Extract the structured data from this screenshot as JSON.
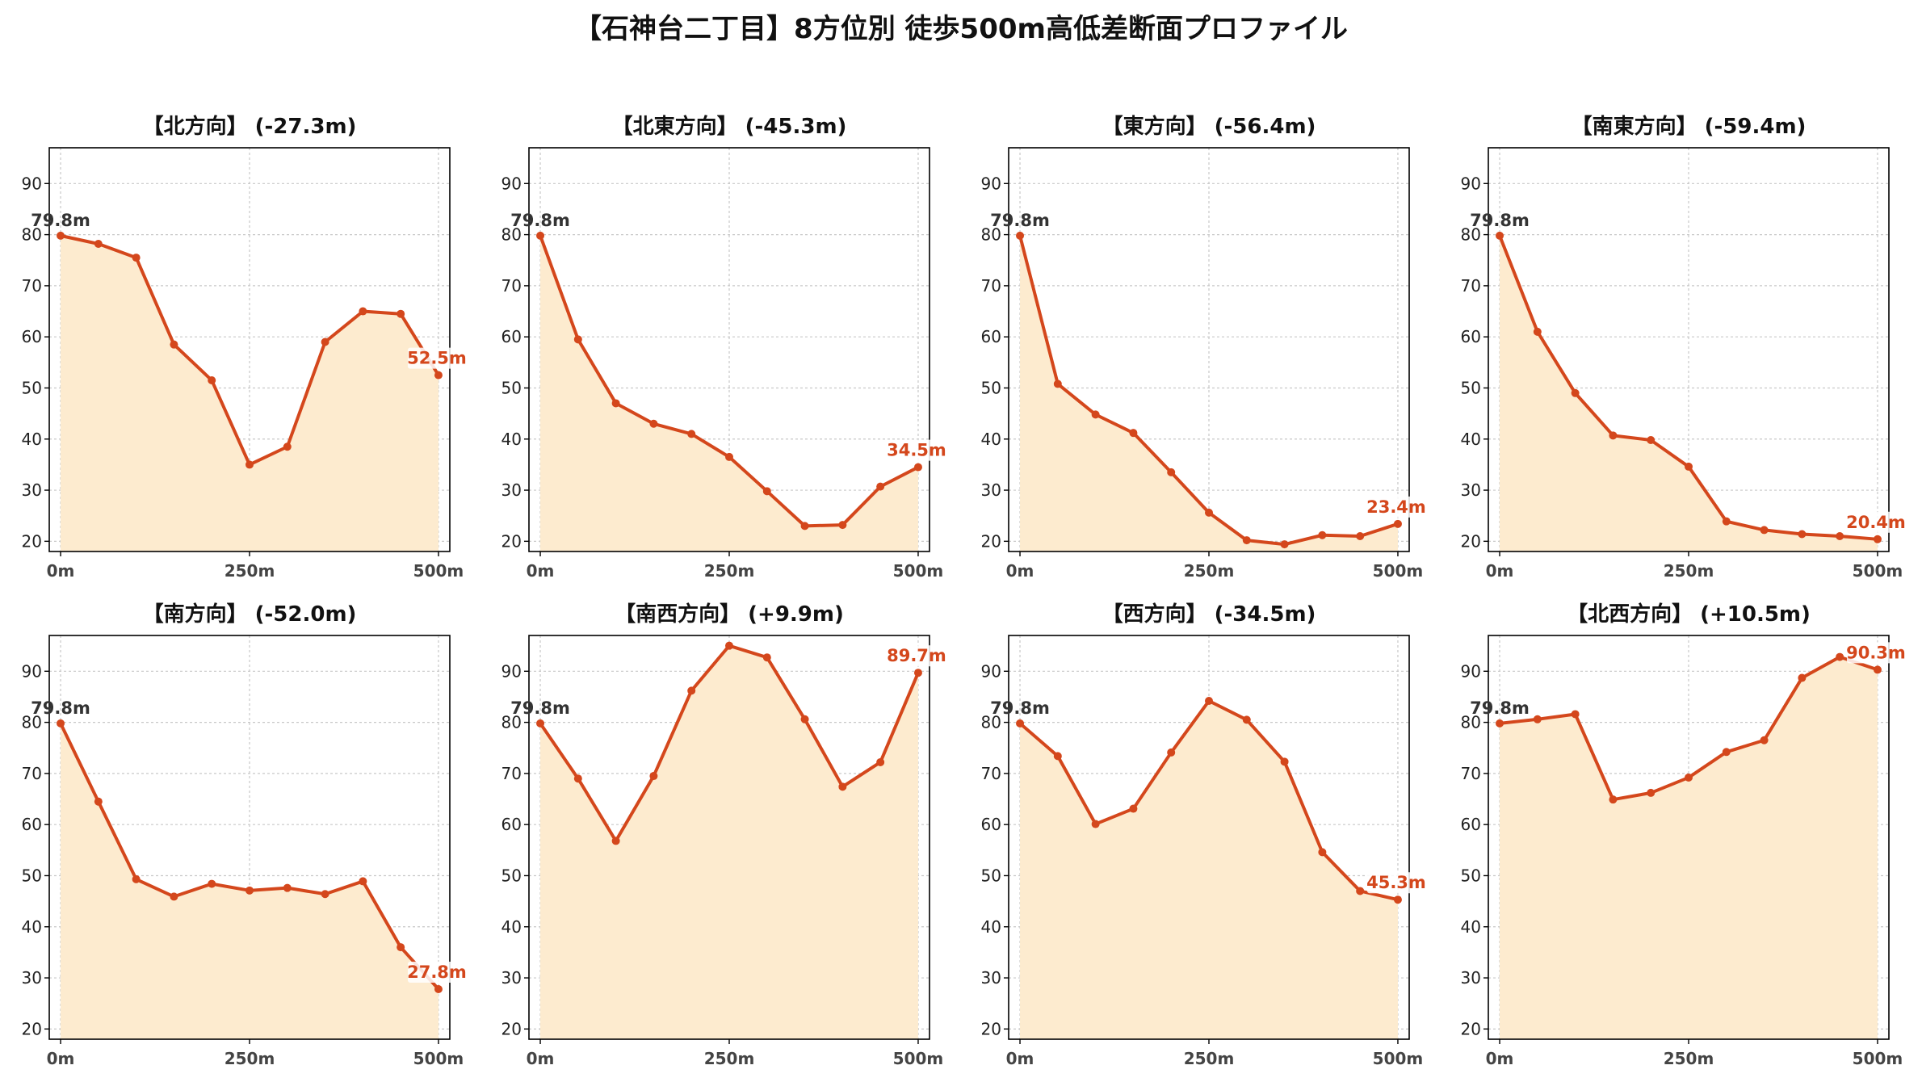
{
  "title": "【石神台二丁目】8方位別 徒歩500m高低差断面プロファイル",
  "colors": {
    "line": "#d4471c",
    "fill": "#fdebcf",
    "grid": "#c8c8c8",
    "end_label": "#d4471c",
    "start_label": "#333333"
  },
  "chart_data": [
    {
      "type": "area",
      "title": "【北方向】 (-27.3m)",
      "x": [
        0,
        50,
        100,
        150,
        200,
        250,
        300,
        350,
        400,
        450,
        500
      ],
      "values": [
        79.8,
        78.2,
        75.5,
        58.5,
        51.5,
        35.0,
        38.5,
        59.0,
        65.0,
        64.5,
        52.5
      ],
      "xticks": [
        "0m",
        "250m",
        "500m"
      ],
      "xtick_values": [
        0,
        250,
        500
      ],
      "yticks": [
        20,
        30,
        40,
        50,
        60,
        70,
        80,
        90
      ],
      "ylim": [
        18,
        97
      ],
      "start_label": "79.8m",
      "end_label": "52.5m",
      "grid": true
    },
    {
      "type": "area",
      "title": "【北東方向】 (-45.3m)",
      "x": [
        0,
        50,
        100,
        150,
        200,
        250,
        300,
        350,
        400,
        450,
        500
      ],
      "values": [
        79.8,
        59.5,
        47.0,
        43.0,
        41.0,
        36.5,
        29.8,
        23.0,
        23.2,
        30.7,
        34.5
      ],
      "xticks": [
        "0m",
        "250m",
        "500m"
      ],
      "xtick_values": [
        0,
        250,
        500
      ],
      "yticks": [
        20,
        30,
        40,
        50,
        60,
        70,
        80,
        90
      ],
      "ylim": [
        18,
        97
      ],
      "start_label": "79.8m",
      "end_label": "34.5m",
      "grid": true
    },
    {
      "type": "area",
      "title": "【東方向】 (-56.4m)",
      "x": [
        0,
        50,
        100,
        150,
        200,
        250,
        300,
        350,
        400,
        450,
        500
      ],
      "values": [
        79.8,
        50.8,
        44.8,
        41.2,
        33.5,
        25.6,
        20.2,
        19.4,
        21.2,
        21.0,
        23.4
      ],
      "xticks": [
        "0m",
        "250m",
        "500m"
      ],
      "xtick_values": [
        0,
        250,
        500
      ],
      "yticks": [
        20,
        30,
        40,
        50,
        60,
        70,
        80,
        90
      ],
      "ylim": [
        18,
        97
      ],
      "start_label": "79.8m",
      "end_label": "23.4m",
      "grid": true
    },
    {
      "type": "area",
      "title": "【南東方向】 (-59.4m)",
      "x": [
        0,
        50,
        100,
        150,
        200,
        250,
        300,
        350,
        400,
        450,
        500
      ],
      "values": [
        79.8,
        61.0,
        49.0,
        40.7,
        39.8,
        34.6,
        23.9,
        22.2,
        21.4,
        21.0,
        20.4
      ],
      "xticks": [
        "0m",
        "250m",
        "500m"
      ],
      "xtick_values": [
        0,
        250,
        500
      ],
      "yticks": [
        20,
        30,
        40,
        50,
        60,
        70,
        80,
        90
      ],
      "ylim": [
        18,
        97
      ],
      "start_label": "79.8m",
      "end_label": "20.4m",
      "grid": true
    },
    {
      "type": "area",
      "title": "【南方向】 (-52.0m)",
      "x": [
        0,
        50,
        100,
        150,
        200,
        250,
        300,
        350,
        400,
        450,
        500
      ],
      "values": [
        79.8,
        64.5,
        49.3,
        45.9,
        48.4,
        47.1,
        47.6,
        46.4,
        48.9,
        36.0,
        27.8
      ],
      "xticks": [
        "0m",
        "250m",
        "500m"
      ],
      "xtick_values": [
        0,
        250,
        500
      ],
      "yticks": [
        20,
        30,
        40,
        50,
        60,
        70,
        80,
        90
      ],
      "ylim": [
        18,
        97
      ],
      "start_label": "79.8m",
      "end_label": "27.8m",
      "grid": true
    },
    {
      "type": "area",
      "title": "【南西方向】 (+9.9m)",
      "x": [
        0,
        50,
        100,
        150,
        200,
        250,
        300,
        350,
        400,
        450,
        500
      ],
      "values": [
        79.8,
        69.0,
        56.8,
        69.5,
        86.2,
        95.0,
        92.7,
        80.6,
        67.4,
        72.2,
        89.7
      ],
      "xticks": [
        "0m",
        "250m",
        "500m"
      ],
      "xtick_values": [
        0,
        250,
        500
      ],
      "yticks": [
        20,
        30,
        40,
        50,
        60,
        70,
        80,
        90
      ],
      "ylim": [
        18,
        97
      ],
      "start_label": "79.8m",
      "end_label": "89.7m",
      "grid": true
    },
    {
      "type": "area",
      "title": "【西方向】 (-34.5m)",
      "x": [
        0,
        50,
        100,
        150,
        200,
        250,
        300,
        350,
        400,
        450,
        500
      ],
      "values": [
        79.8,
        73.4,
        60.1,
        63.1,
        74.1,
        84.2,
        80.5,
        72.3,
        54.6,
        47.0,
        45.3
      ],
      "xticks": [
        "0m",
        "250m",
        "500m"
      ],
      "xtick_values": [
        0,
        250,
        500
      ],
      "yticks": [
        20,
        30,
        40,
        50,
        60,
        70,
        80,
        90
      ],
      "ylim": [
        18,
        97
      ],
      "start_label": "79.8m",
      "end_label": "45.3m",
      "grid": true
    },
    {
      "type": "area",
      "title": "【北西方向】 (+10.5m)",
      "x": [
        0,
        50,
        100,
        150,
        200,
        250,
        300,
        350,
        400,
        450,
        500
      ],
      "values": [
        79.8,
        80.6,
        81.6,
        64.9,
        66.2,
        69.2,
        74.2,
        76.5,
        88.7,
        92.8,
        90.3
      ],
      "xticks": [
        "0m",
        "250m",
        "500m"
      ],
      "xtick_values": [
        0,
        250,
        500
      ],
      "yticks": [
        20,
        30,
        40,
        50,
        60,
        70,
        80,
        90
      ],
      "ylim": [
        18,
        97
      ],
      "start_label": "79.8m",
      "end_label": "90.3m",
      "grid": true
    }
  ]
}
